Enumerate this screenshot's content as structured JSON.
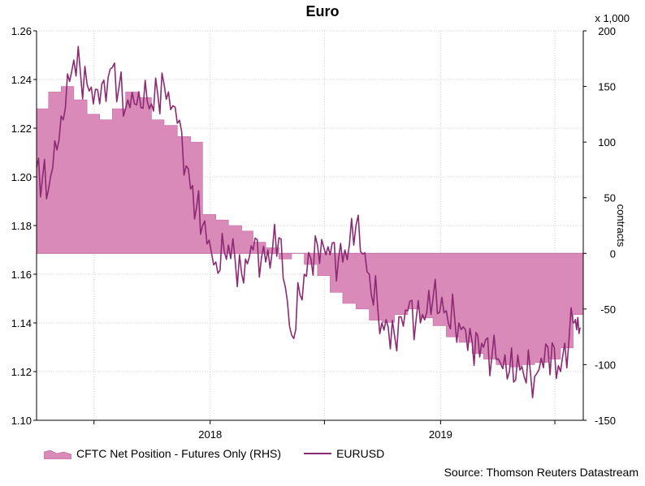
{
  "chart_data": {
    "type": "area",
    "title": "Euro",
    "y_right_unit": "x 1,000",
    "ylabel_right": "contracts",
    "xlabel": "",
    "ylabel": "",
    "x_ticks": [
      "2018",
      "2019"
    ],
    "ylim_left": [
      1.1,
      1.26
    ],
    "yticks_left": [
      "1.10",
      "1.12",
      "1.14",
      "1.16",
      "1.18",
      "1.20",
      "1.22",
      "1.24",
      "1.26"
    ],
    "ylim_right": [
      -150,
      200
    ],
    "yticks_right": [
      "-150",
      "-100",
      "-50",
      "0",
      "50",
      "100",
      "150",
      "200"
    ],
    "grid": true,
    "legend_position": "bottom",
    "source": "Source: Thomson Reuters Datastream",
    "series": [
      {
        "name": "CFTC Net Position - Futures Only (RHS)",
        "kind": "area",
        "axis": "right",
        "color": "#d98ab8",
        "x": [
          "2017-04",
          "2017-04-20",
          "2017-05-10",
          "2017-05-30",
          "2017-06-20",
          "2017-07-10",
          "2017-07-30",
          "2017-08-20",
          "2017-09-10",
          "2017-09-30",
          "2017-10-20",
          "2017-11-10",
          "2017-12-01",
          "2017-12-20",
          "2018-01-10",
          "2018-01-30",
          "2018-02-20",
          "2018-03-10",
          "2018-03-30",
          "2018-04-20",
          "2018-05-10",
          "2018-05-30",
          "2018-06-20",
          "2018-07-10",
          "2018-07-30",
          "2018-08-20",
          "2018-09-10",
          "2018-09-30",
          "2018-10-20",
          "2018-11-10",
          "2018-11-30",
          "2018-12-20",
          "2019-01-10",
          "2019-01-30",
          "2019-02-20",
          "2019-03-10",
          "2019-03-30",
          "2019-04-20",
          "2019-05-10",
          "2019-05-30",
          "2019-06-20",
          "2019-07-10",
          "2019-07-30",
          "2019-08-10"
        ],
        "values": [
          130,
          145,
          150,
          138,
          125,
          120,
          130,
          145,
          140,
          120,
          115,
          105,
          100,
          35,
          30,
          25,
          20,
          10,
          5,
          -5,
          0,
          -10,
          -20,
          -35,
          -45,
          -50,
          -60,
          -62,
          -55,
          -50,
          -58,
          -65,
          -75,
          -80,
          -90,
          -95,
          -100,
          -102,
          -100,
          -98,
          -95,
          -85,
          -55,
          -55
        ]
      },
      {
        "name": "EURUSD",
        "kind": "line",
        "axis": "left",
        "color": "#8b2a73",
        "x": [
          "2017-04",
          "2017-04-20",
          "2017-05-10",
          "2017-05-30",
          "2017-06-20",
          "2017-07-10",
          "2017-07-30",
          "2017-08-20",
          "2017-09-10",
          "2017-09-30",
          "2017-10-20",
          "2017-11-10",
          "2017-12-01",
          "2017-12-20",
          "2018-01-10",
          "2018-01-30",
          "2018-02-20",
          "2018-03-10",
          "2018-03-30",
          "2018-04-20",
          "2018-05-10",
          "2018-05-30",
          "2018-06-20",
          "2018-07-10",
          "2018-07-30",
          "2018-08-20",
          "2018-09-10",
          "2018-09-30",
          "2018-10-20",
          "2018-11-10",
          "2018-11-30",
          "2018-12-20",
          "2019-01-10",
          "2019-01-30",
          "2019-02-20",
          "2019-03-10",
          "2019-03-30",
          "2019-04-20",
          "2019-05-10",
          "2019-05-30",
          "2019-06-20",
          "2019-07-10",
          "2019-07-30",
          "2019-08-10"
        ],
        "values": [
          1.204,
          1.195,
          1.225,
          1.248,
          1.238,
          1.23,
          1.245,
          1.228,
          1.235,
          1.23,
          1.238,
          1.222,
          1.195,
          1.18,
          1.165,
          1.172,
          1.16,
          1.17,
          1.165,
          1.175,
          1.135,
          1.16,
          1.172,
          1.168,
          1.165,
          1.18,
          1.16,
          1.14,
          1.135,
          1.145,
          1.14,
          1.15,
          1.145,
          1.14,
          1.132,
          1.13,
          1.125,
          1.12,
          1.122,
          1.118,
          1.13,
          1.12,
          1.14,
          1.138
        ]
      }
    ]
  }
}
